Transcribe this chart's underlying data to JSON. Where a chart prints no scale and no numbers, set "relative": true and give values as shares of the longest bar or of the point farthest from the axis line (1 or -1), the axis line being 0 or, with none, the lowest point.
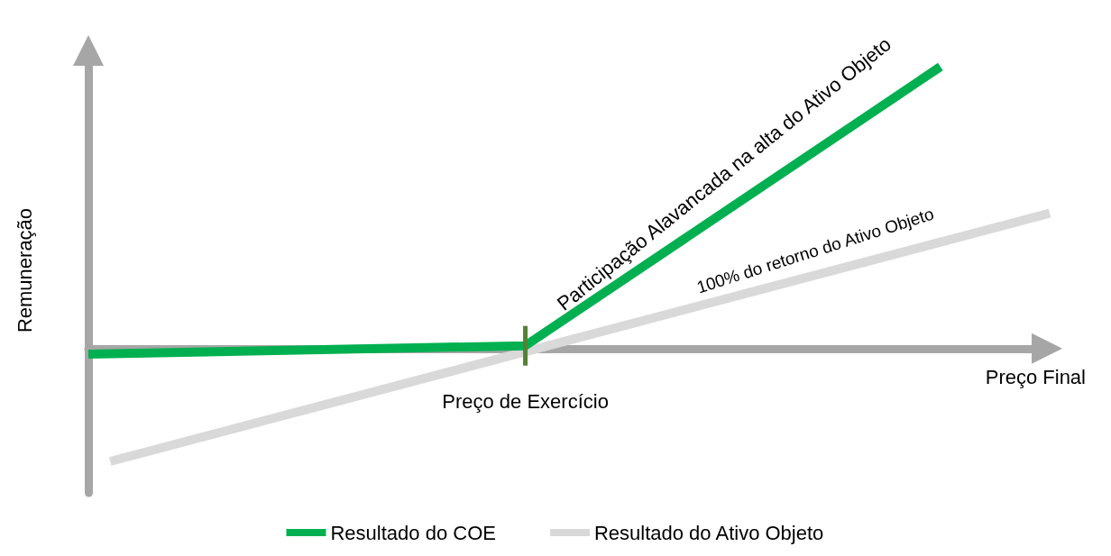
{
  "chart_data": {
    "type": "line",
    "relative": true,
    "ylabel": "Remuneração",
    "xlabel": "Preço Final",
    "categories": [
      null,
      null,
      null,
      null,
      null,
      null,
      null,
      null,
      null,
      null,
      null,
      null,
      null,
      null,
      null,
      null,
      null,
      null,
      null,
      null,
      null,
      null,
      null,
      null,
      null,
      null,
      null,
      null,
      null,
      null,
      null,
      null,
      null,
      null,
      null,
      null,
      null,
      null,
      null,
      null,
      null,
      null,
      null,
      null,
      null
    ],
    "series": [
      {
        "name": "Resultado do COE",
        "color": "#00b050",
        "values": [
          -0.02,
          null,
          null,
          null,
          null,
          null,
          null,
          null,
          null,
          null,
          null,
          null,
          null,
          null,
          null,
          null,
          null,
          null,
          null,
          null,
          0.01,
          null,
          null,
          null,
          null,
          null,
          null,
          null,
          null,
          null,
          null,
          null,
          null,
          null,
          null,
          null,
          null,
          null,
          null,
          1,
          null,
          null,
          null,
          null,
          null
        ]
      },
      {
        "name": "Resultado do Ativo Objeto",
        "color": "#d9d9d9",
        "values": [
          null,
          -0.4,
          null,
          null,
          null,
          null,
          null,
          null,
          null,
          null,
          null,
          null,
          null,
          null,
          null,
          null,
          null,
          null,
          null,
          null,
          null,
          null,
          null,
          null,
          null,
          null,
          null,
          null,
          null,
          null,
          null,
          null,
          null,
          null,
          null,
          null,
          null,
          null,
          null,
          null,
          null,
          null,
          null,
          null,
          0.48
        ]
      }
    ],
    "annotations": [
      "Preço de Exercício",
      "Participação Alavancada na alta do Ativo Objeto",
      "100% do retorno do Ativo Objeto"
    ],
    "legend": "bottom",
    "grid": false,
    "marker": "none",
    "line_style": "solid"
  }
}
